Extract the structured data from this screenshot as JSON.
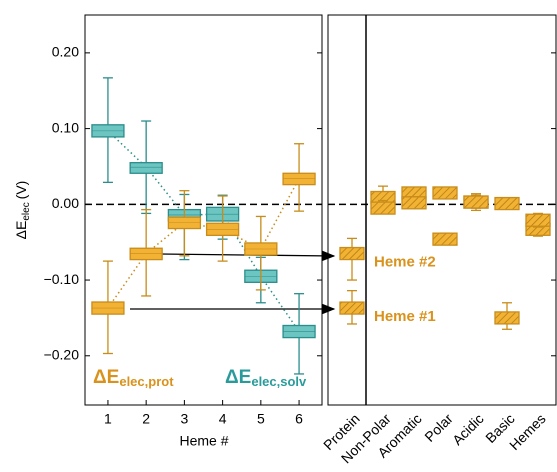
{
  "chart_data": [
    {
      "type": "box",
      "x_label": "Heme #",
      "y_label": "ΔE",
      "y_label_sub": "elec",
      "y_label_unit": "(V)",
      "x": [
        1,
        2,
        3,
        4,
        5,
        6
      ],
      "xlim": [
        0.4,
        6.6
      ],
      "xticks": [
        1,
        2,
        3,
        4,
        5,
        6
      ],
      "ylim": [
        -0.265,
        0.25
      ],
      "yticks": [
        {
          "value": -0.2,
          "label": "−0.20"
        },
        {
          "value": -0.1,
          "label": "−0.10"
        },
        {
          "value": 0,
          "label": "0.00"
        },
        {
          "value": 0.1,
          "label": "0.10"
        },
        {
          "value": 0.2,
          "label": "0.20"
        }
      ],
      "reference_line": 0,
      "series": [
        {
          "name": "ΔE",
          "name_sub": "elec,solv",
          "color": "#6cc5c1",
          "edge": "#2b8d8c",
          "values": [
            0.097,
            0.049,
            -0.014,
            -0.013,
            -0.095,
            -0.168
          ],
          "box_low": [
            0.089,
            0.041,
            -0.022,
            -0.022,
            -0.103,
            -0.176
          ],
          "box_high": [
            0.105,
            0.055,
            -0.007,
            -0.004,
            -0.087,
            -0.16
          ],
          "whisker_low": [
            0.029,
            -0.012,
            -0.073,
            -0.046,
            -0.13,
            -0.224
          ],
          "whisker_high": [
            0.167,
            0.11,
            0.013,
            0.012,
            -0.07,
            -0.118
          ]
        },
        {
          "name": "ΔE",
          "name_sub": "elec,prot",
          "color": "#f2b234",
          "edge": "#c88c1a",
          "values": [
            -0.137,
            -0.065,
            -0.024,
            -0.033,
            -0.059,
            0.034
          ],
          "box_low": [
            -0.145,
            -0.073,
            -0.032,
            -0.041,
            -0.067,
            0.026
          ],
          "box_high": [
            -0.129,
            -0.058,
            -0.017,
            -0.025,
            -0.051,
            0.041
          ],
          "whisker_low": [
            -0.197,
            -0.121,
            -0.068,
            -0.075,
            -0.113,
            -0.009
          ],
          "whisker_high": [
            -0.075,
            -0.007,
            0.018,
            0.011,
            -0.016,
            0.08
          ]
        }
      ]
    },
    {
      "type": "box",
      "categories": [
        "Protein",
        "Non-Polar",
        "Aromatic",
        "Polar",
        "Acidic",
        "Basic",
        "Hemes"
      ],
      "ylim": [
        -0.265,
        0.25
      ],
      "yticks": [
        -0.2,
        -0.1,
        0,
        0.1,
        0.2
      ],
      "reference_line": 0,
      "series": [
        {
          "name": "Heme #2",
          "color": "#f2b234",
          "edge": "#c88c1a",
          "values": [
            -0.065,
            0.009,
            0.015,
            -0.046,
            0.003,
            0.001,
            -0.033
          ],
          "whisker_low": [
            -0.1,
            0.002,
            0.008,
            -0.053,
            -0.005,
            -0.003,
            -0.042
          ],
          "whisker_high": [
            -0.045,
            0.024,
            0.022,
            -0.038,
            0.014,
            0.006,
            -0.018
          ]
        },
        {
          "name": "Heme #1",
          "color": "#f2b234",
          "edge": "#c88c1a",
          "values": [
            -0.137,
            -0.005,
            0.002,
            0.015,
            0.003,
            -0.15,
            -0.021
          ],
          "whisker_low": [
            -0.158,
            -0.012,
            -0.004,
            0.009,
            -0.008,
            -0.165,
            -0.03
          ],
          "whisker_high": [
            -0.114,
            0.005,
            0.01,
            0.022,
            0.012,
            -0.13,
            -0.012
          ]
        }
      ]
    }
  ]
}
